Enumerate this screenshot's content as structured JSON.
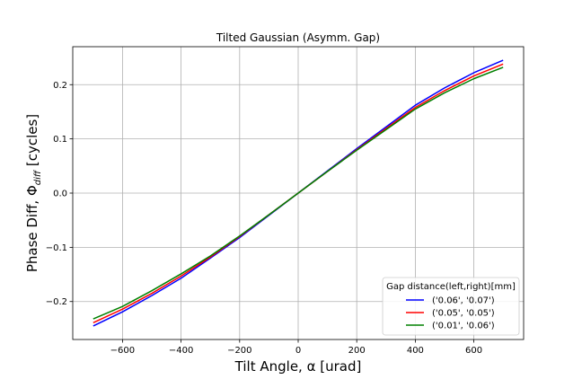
{
  "chart_data": {
    "type": "line",
    "title": "Tilted Gaussian (Asymm. Gap)",
    "xlabel": "Tilt Angle, α [urad]",
    "ylabel_prefix": "Phase Diff, Φ",
    "ylabel_sub": "diff",
    "ylabel_suffix": " [cycles]",
    "xlim": [
      -770,
      770
    ],
    "ylim": [
      -0.27,
      0.27
    ],
    "xticks": [
      -600,
      -400,
      -200,
      0,
      200,
      400,
      600
    ],
    "xtick_labels": [
      "−600",
      "−400",
      "−200",
      "0",
      "200",
      "400",
      "600"
    ],
    "yticks": [
      -0.2,
      -0.1,
      0.0,
      0.1,
      0.2
    ],
    "ytick_labels": [
      "−0.2",
      "−0.1",
      "0.0",
      "0.1",
      "0.2"
    ],
    "grid": true,
    "legend": {
      "title": "Gap distance(left,right)[mm]",
      "placement": "lower-right"
    },
    "x": [
      -700,
      -600,
      -500,
      -400,
      -300,
      -200,
      -100,
      0,
      100,
      200,
      300,
      400,
      500,
      600,
      700
    ],
    "series": [
      {
        "name": "('0.06', '0.07')",
        "color": "#0000ff",
        "values": [
          -0.245,
          -0.219,
          -0.189,
          -0.157,
          -0.12,
          -0.082,
          -0.041,
          0.0,
          0.041,
          0.082,
          0.122,
          0.162,
          0.194,
          0.222,
          0.245
        ]
      },
      {
        "name": "('0.05', '0.05')",
        "color": "#ff0000",
        "values": [
          -0.239,
          -0.214,
          -0.185,
          -0.153,
          -0.118,
          -0.08,
          -0.04,
          0.0,
          0.04,
          0.08,
          0.119,
          0.158,
          0.189,
          0.216,
          0.238
        ]
      },
      {
        "name": "('0.01', '0.06')",
        "color": "#008000",
        "values": [
          -0.232,
          -0.209,
          -0.18,
          -0.149,
          -0.116,
          -0.079,
          -0.04,
          0.0,
          0.04,
          0.079,
          0.117,
          0.155,
          0.185,
          0.211,
          0.232
        ]
      }
    ]
  }
}
